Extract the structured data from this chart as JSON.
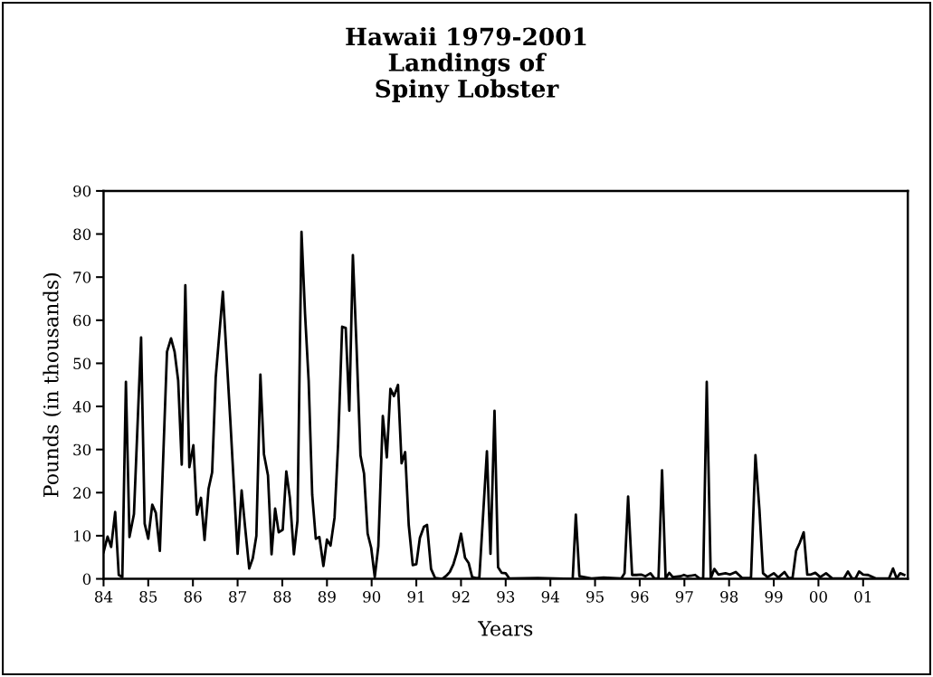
{
  "chart_data": {
    "type": "line",
    "title": "Hawaii 1979-2001\nLandings of\nSpiny Lobster",
    "xlabel": "Years",
    "ylabel": "Pounds (in thousands)",
    "xlim": [
      1984,
      2002
    ],
    "xticks": [
      {
        "value": 1984,
        "label": "84"
      },
      {
        "value": 1985,
        "label": "85"
      },
      {
        "value": 1986,
        "label": "86"
      },
      {
        "value": 1987,
        "label": "87"
      },
      {
        "value": 1988,
        "label": "88"
      },
      {
        "value": 1989,
        "label": "89"
      },
      {
        "value": 1990,
        "label": "90"
      },
      {
        "value": 1991,
        "label": "91"
      },
      {
        "value": 1992,
        "label": "92"
      },
      {
        "value": 1993,
        "label": "93"
      },
      {
        "value": 1994,
        "label": "94"
      },
      {
        "value": 1995,
        "label": "95"
      },
      {
        "value": 1996,
        "label": "96"
      },
      {
        "value": 1997,
        "label": "97"
      },
      {
        "value": 1998,
        "label": "98"
      },
      {
        "value": 1999,
        "label": "99"
      },
      {
        "value": 2000,
        "label": "00"
      },
      {
        "value": 2001,
        "label": "01"
      }
    ],
    "ylim": [
      0,
      90
    ],
    "yticks": [
      0,
      10,
      20,
      30,
      40,
      50,
      60,
      70,
      80,
      90
    ],
    "grid": false,
    "legend": false,
    "marker": "none",
    "line_style": "solid",
    "series": [
      {
        "color": "#000000",
        "x": [
          1984.0,
          1984.09,
          1984.17,
          1984.26,
          1984.34,
          1984.42,
          1984.5,
          1984.58,
          1984.68,
          1984.84,
          1984.92,
          1985.0,
          1985.09,
          1985.17,
          1985.26,
          1985.42,
          1985.51,
          1985.59,
          1985.67,
          1985.75,
          1985.83,
          1985.92,
          1986.01,
          1986.09,
          1986.18,
          1986.26,
          1986.35,
          1986.43,
          1986.51,
          1986.67,
          1986.84,
          1987.0,
          1987.09,
          1987.17,
          1987.26,
          1987.34,
          1987.42,
          1987.51,
          1987.59,
          1987.68,
          1987.76,
          1987.84,
          1987.92,
          1988.01,
          1988.09,
          1988.17,
          1988.26,
          1988.34,
          1988.43,
          1988.51,
          1988.59,
          1988.67,
          1988.75,
          1988.83,
          1988.92,
          1989.0,
          1989.08,
          1989.17,
          1989.25,
          1989.34,
          1989.42,
          1989.5,
          1989.58,
          1989.66,
          1989.75,
          1989.83,
          1989.91,
          1989.99,
          1990.07,
          1990.15,
          1990.25,
          1990.34,
          1990.42,
          1990.5,
          1990.59,
          1990.67,
          1990.75,
          1990.83,
          1990.92,
          1991.0,
          1991.08,
          1991.17,
          1991.24,
          1991.33,
          1991.42,
          1991.58,
          1991.67,
          1991.75,
          1991.83,
          1991.91,
          1992.0,
          1992.09,
          1992.17,
          1992.25,
          1992.33,
          1992.41,
          1992.58,
          1992.66,
          1992.75,
          1992.83,
          1992.91,
          1993.0,
          1993.08,
          1993.72,
          1994.5,
          1994.57,
          1994.65,
          1994.92,
          1995.19,
          1995.59,
          1995.66,
          1995.74,
          1995.83,
          1995.93,
          1996.03,
          1996.13,
          1996.24,
          1996.33,
          1996.42,
          1996.5,
          1996.58,
          1996.66,
          1996.74,
          1996.91,
          1996.99,
          1997.07,
          1997.24,
          1997.34,
          1997.42,
          1997.5,
          1997.59,
          1997.67,
          1997.76,
          1997.92,
          1998.02,
          1998.15,
          1998.29,
          1998.49,
          1998.59,
          1998.68,
          1998.76,
          1998.86,
          1999.0,
          1999.1,
          1999.24,
          1999.33,
          1999.42,
          1999.5,
          1999.58,
          1999.67,
          1999.75,
          1999.83,
          1999.93,
          2000.04,
          2000.17,
          2000.31,
          2000.57,
          2000.66,
          2000.75,
          2000.83,
          2000.91,
          2001.0,
          2001.11,
          2001.28,
          2001.58,
          2001.67,
          2001.75,
          2001.83,
          2001.92
        ],
        "values": [
          6.2,
          9.8,
          7.4,
          15.5,
          0.9,
          0.4,
          45.7,
          9.7,
          15.0,
          56.0,
          12.8,
          9.3,
          17.2,
          15.3,
          6.5,
          52.7,
          55.8,
          52.7,
          46.0,
          26.5,
          68.1,
          25.9,
          31.0,
          14.9,
          18.8,
          9.0,
          20.9,
          24.7,
          46.7,
          66.6,
          36.2,
          5.8,
          20.5,
          11.8,
          2.4,
          4.8,
          10.0,
          47.4,
          28.9,
          24.0,
          5.7,
          16.3,
          10.8,
          11.4,
          24.9,
          18.8,
          5.7,
          13.5,
          80.5,
          61.4,
          46.0,
          19.5,
          9.3,
          9.7,
          3.0,
          9.1,
          7.7,
          14.2,
          31.4,
          58.5,
          58.2,
          39.0,
          75.1,
          54.4,
          28.6,
          24.4,
          10.5,
          7.2,
          0.4,
          7.6,
          37.8,
          28.2,
          44.1,
          42.4,
          45.0,
          26.8,
          29.4,
          12.5,
          3.2,
          3.4,
          9.5,
          12.1,
          12.5,
          2.3,
          0.2,
          0,
          0.7,
          1.6,
          3.4,
          6.2,
          10.5,
          4.9,
          3.7,
          0.4,
          0.2,
          0.2,
          29.6,
          5.8,
          39.0,
          2.7,
          1.4,
          1.3,
          0.1,
          0.2,
          0,
          14.9,
          0.6,
          0.1,
          0.3,
          0.1,
          1.3,
          19.1,
          0.9,
          0.9,
          1.0,
          0.6,
          1.3,
          0.1,
          0.1,
          25.2,
          0.1,
          1.4,
          0.4,
          0.6,
          0.9,
          0.6,
          0.9,
          0.1,
          0.1,
          45.7,
          0.1,
          2.3,
          1.0,
          1.3,
          1.0,
          1.6,
          0.2,
          0.2,
          28.7,
          16.0,
          1.3,
          0.4,
          1.3,
          0.3,
          1.6,
          0.2,
          0.2,
          6.5,
          8.3,
          10.8,
          1.0,
          1.0,
          1.4,
          0.4,
          1.3,
          0.1,
          0.1,
          1.7,
          0.1,
          0.1,
          1.7,
          1.0,
          0.9,
          0.1,
          0.1,
          2.4,
          0.1,
          1.3,
          0.9
        ]
      }
    ]
  }
}
